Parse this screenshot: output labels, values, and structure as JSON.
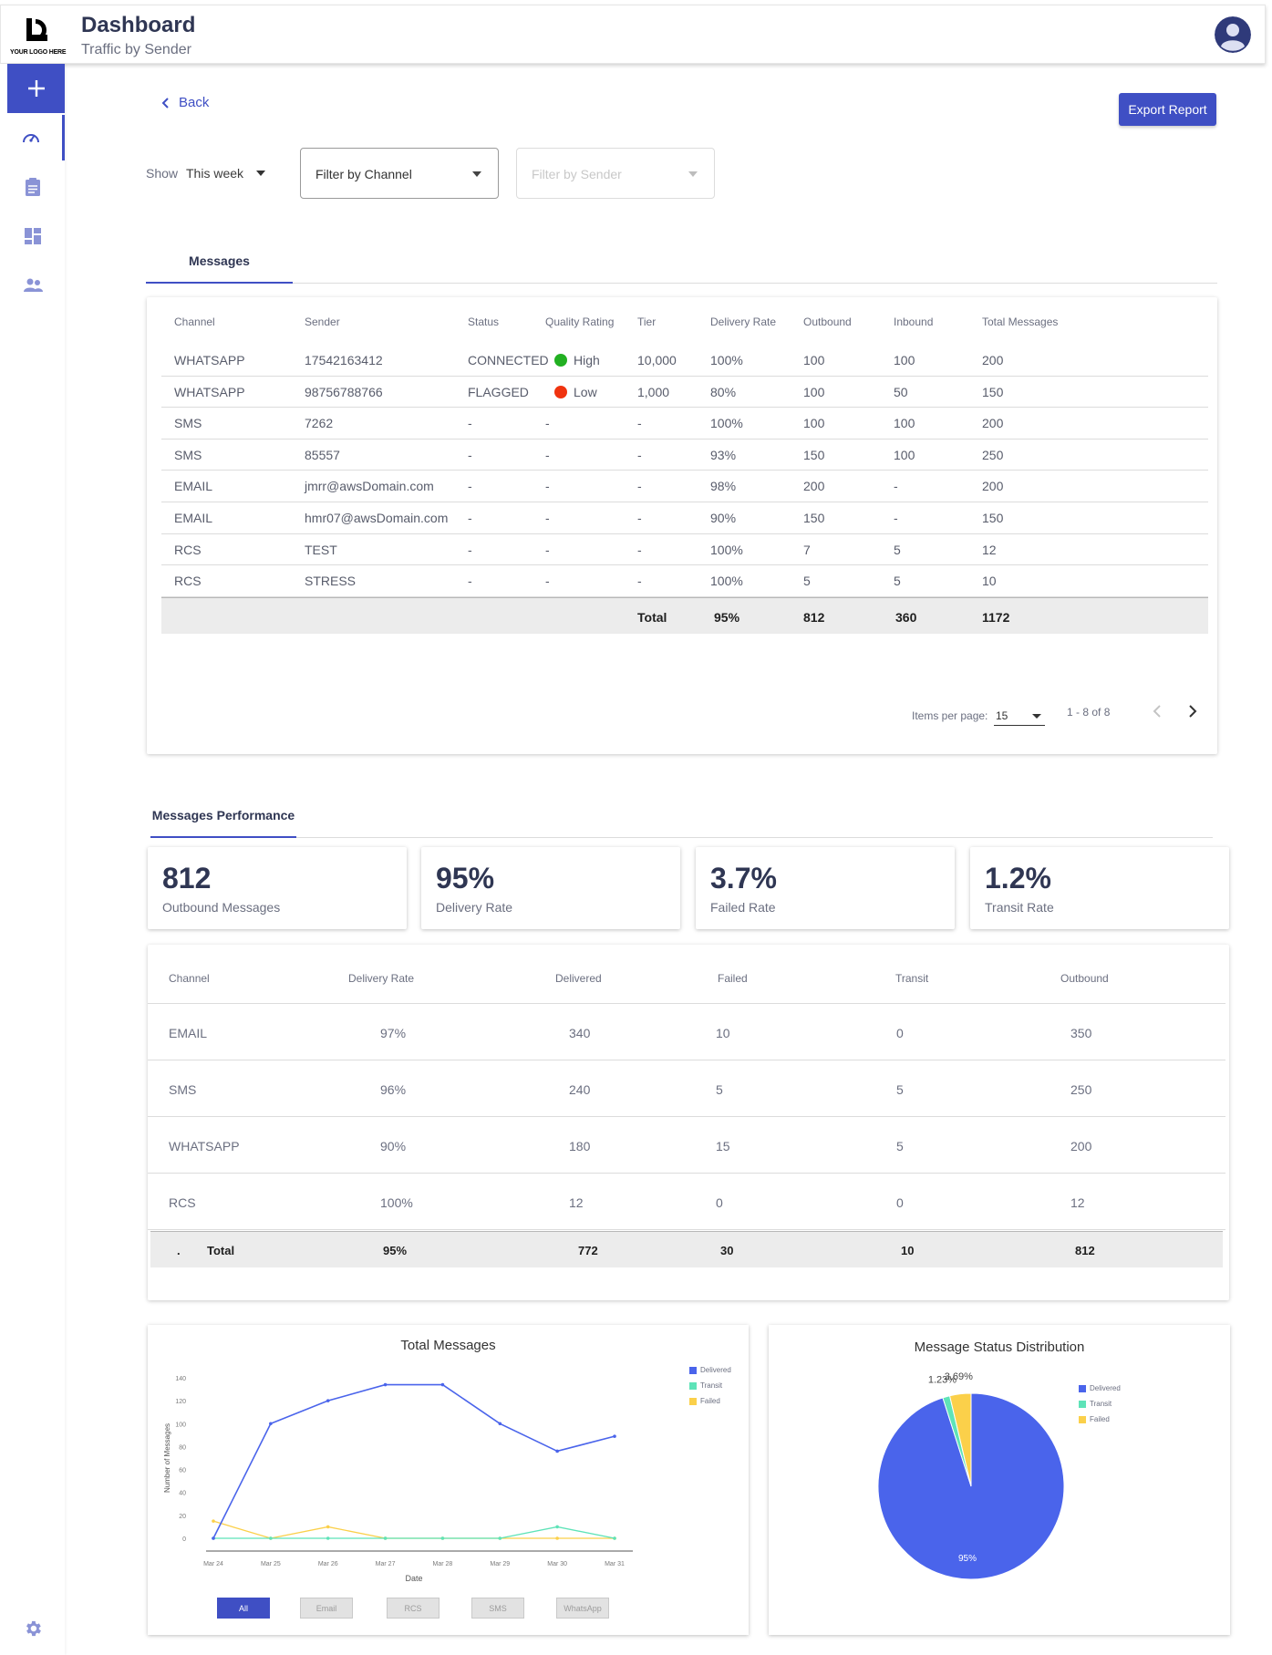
{
  "header": {
    "logo_text": "YOUR LOGO HERE",
    "title": "Dashboard",
    "subtitle": "Traffic by Sender",
    "avatar_icon": "user-avatar-icon"
  },
  "sidebar": {
    "items": [
      {
        "name": "add",
        "icon": "plus-icon"
      },
      {
        "name": "dashboard",
        "icon": "speedometer-icon",
        "active": true
      },
      {
        "name": "reports",
        "icon": "clipboard-icon"
      },
      {
        "name": "widgets",
        "icon": "dashboard-grid-icon"
      },
      {
        "name": "users",
        "icon": "people-icon"
      }
    ],
    "settings_icon": "gear-icon"
  },
  "toolbar": {
    "back_label": "Back",
    "export_label": "Export Report",
    "show_label": "Show",
    "show_value": "This week",
    "channel_filter_placeholder": "Filter by Channel",
    "sender_filter_placeholder": "Filter by Sender"
  },
  "messages_tab": {
    "label": "Messages",
    "columns": [
      "Channel",
      "Sender",
      "Status",
      "Quality Rating",
      "Tier",
      "Delivery Rate",
      "Outbound",
      "Inbound",
      "Total Messages"
    ],
    "rows": [
      {
        "channel": "WHATSAPP",
        "sender": "17542163412",
        "status": "CONNECTED",
        "quality": "High",
        "quality_color": "#22b022",
        "tier": "10,000",
        "delivery_rate": "100%",
        "outbound": "100",
        "inbound": "100",
        "total": "200"
      },
      {
        "channel": "WHATSAPP",
        "sender": "98756788766",
        "status": "FLAGGED",
        "quality": "Low",
        "quality_color": "#f0330f",
        "tier": "1,000",
        "delivery_rate": "80%",
        "outbound": "100",
        "inbound": "50",
        "total": "150"
      },
      {
        "channel": "SMS",
        "sender": "7262",
        "status": "-",
        "quality": "-",
        "tier": "-",
        "delivery_rate": "100%",
        "outbound": "100",
        "inbound": "100",
        "total": "200"
      },
      {
        "channel": "SMS",
        "sender": "85557",
        "status": "-",
        "quality": "-",
        "tier": "-",
        "delivery_rate": "93%",
        "outbound": "150",
        "inbound": "100",
        "total": "250"
      },
      {
        "channel": "EMAIL",
        "sender": "jmrr@awsDomain.com",
        "status": "-",
        "quality": "-",
        "tier": "-",
        "delivery_rate": "98%",
        "outbound": "200",
        "inbound": "-",
        "total": "200"
      },
      {
        "channel": "EMAIL",
        "sender": "hmr07@awsDomain.com",
        "status": "-",
        "quality": "-",
        "tier": "-",
        "delivery_rate": "90%",
        "outbound": "150",
        "inbound": "-",
        "total": "150"
      },
      {
        "channel": "RCS",
        "sender": "TEST",
        "status": "-",
        "quality": "-",
        "tier": "-",
        "delivery_rate": "100%",
        "outbound": "7",
        "inbound": "5",
        "total": "12"
      },
      {
        "channel": "RCS",
        "sender": "STRESS",
        "status": "-",
        "quality": "-",
        "tier": "-",
        "delivery_rate": "100%",
        "outbound": "5",
        "inbound": "5",
        "total": "10"
      }
    ],
    "total_row": {
      "label": "Total",
      "delivery_rate": "95%",
      "outbound": "812",
      "inbound": "360",
      "total": "1172"
    },
    "pagination": {
      "items_per_page_label": "Items per page:",
      "items_per_page": "15",
      "range": "1 - 8 of 8"
    }
  },
  "performance_tab": {
    "label": "Messages Performance",
    "kpis": [
      {
        "value": "812",
        "label": "Outbound Messages"
      },
      {
        "value": "95%",
        "label": "Delivery Rate"
      },
      {
        "value": "3.7%",
        "label": "Failed Rate"
      },
      {
        "value": "1.2%",
        "label": "Transit Rate"
      }
    ],
    "columns": [
      "Channel",
      "Delivery Rate",
      "Delivered",
      "Failed",
      "Transit",
      "Outbound"
    ],
    "rows": [
      {
        "channel": "EMAIL",
        "delivery_rate": "97%",
        "delivered": "340",
        "failed": "10",
        "transit": "0",
        "outbound": "350"
      },
      {
        "channel": "SMS",
        "delivery_rate": "96%",
        "delivered": "240",
        "failed": "5",
        "transit": "5",
        "outbound": "250"
      },
      {
        "channel": "WHATSAPP",
        "delivery_rate": "90%",
        "delivered": "180",
        "failed": "15",
        "transit": "5",
        "outbound": "200"
      },
      {
        "channel": "RCS",
        "delivery_rate": "100%",
        "delivered": "12",
        "failed": "0",
        "transit": "0",
        "outbound": "12"
      }
    ],
    "total_row": {
      "bullet": ".",
      "label": "Total",
      "delivery_rate": "95%",
      "delivered": "772",
      "failed": "30",
      "transit": "10",
      "outbound": "812"
    }
  },
  "colors": {
    "accent": "#3f4fc4",
    "delivered": "#4a64eb",
    "transit": "#5ee3b8",
    "failed": "#fbd04a"
  },
  "chart_data": [
    {
      "type": "line",
      "title": "Total Messages",
      "xlabel": "Date",
      "ylabel": "Number of Messages",
      "x": [
        "Mar 24",
        "Mar 25",
        "Mar 26",
        "Mar 27",
        "Mar 28",
        "Mar 29",
        "Mar 30",
        "Mar 31"
      ],
      "ylim": [
        0,
        140
      ],
      "yticks": [
        0,
        20,
        40,
        60,
        80,
        100,
        120,
        140
      ],
      "series": [
        {
          "name": "Delivered",
          "values": [
            0,
            100,
            120,
            134,
            134,
            100,
            76,
            89
          ]
        },
        {
          "name": "Transit",
          "values": [
            0,
            0,
            0,
            0,
            0,
            0,
            10,
            0
          ]
        },
        {
          "name": "Failed",
          "values": [
            15,
            0,
            10,
            0,
            0,
            0,
            0,
            0
          ]
        }
      ],
      "legend": "top-right",
      "grid": false,
      "filter_buttons": [
        "All",
        "Email",
        "RCS",
        "SMS",
        "WhatsApp"
      ],
      "active_filter": "All"
    },
    {
      "type": "pie",
      "title": "Message Status Distribution",
      "slices": [
        {
          "name": "Delivered",
          "value": 95,
          "label": "95%"
        },
        {
          "name": "Transit",
          "value": 1.23,
          "label": "1.23%"
        },
        {
          "name": "Failed",
          "value": 3.69,
          "label": "3.69%"
        }
      ],
      "legend": "right"
    }
  ]
}
